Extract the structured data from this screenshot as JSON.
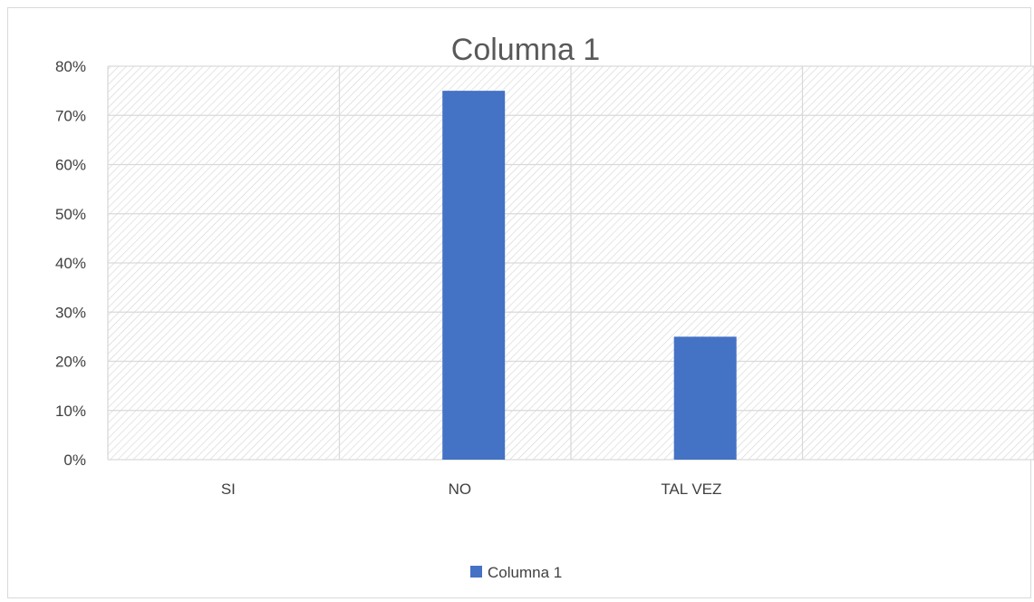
{
  "chart_data": {
    "type": "bar",
    "title": "Columna 1",
    "categories": [
      "SI",
      "NO",
      "TAL VEZ",
      ""
    ],
    "series": [
      {
        "name": "Columna 1",
        "values": [
          0,
          75,
          25,
          null
        ],
        "color": "#4472C4"
      }
    ],
    "yticks": [
      "0%",
      "10%",
      "20%",
      "30%",
      "40%",
      "50%",
      "60%",
      "70%",
      "80%"
    ],
    "ylim": [
      0,
      80
    ],
    "unit": "%",
    "grid": true,
    "legend_position": "bottom"
  }
}
